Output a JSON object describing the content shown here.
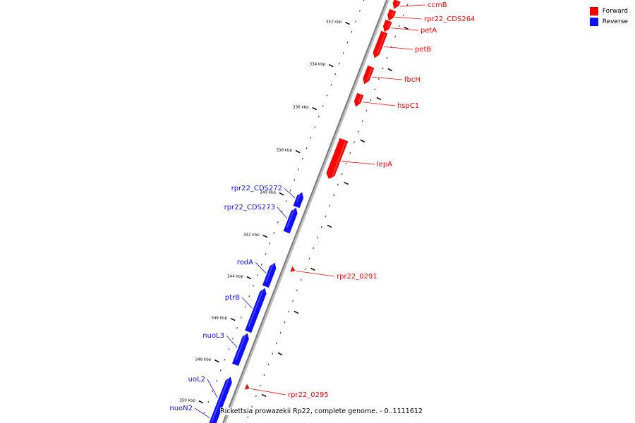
{
  "caption": "Rickettsia prowazekii Rp22, complete genome. - 0..1111612",
  "legend": [
    {
      "label": "Forward",
      "color": "#ff0000"
    },
    {
      "label": "Reverse",
      "color": "#1010ff"
    }
  ],
  "colors": {
    "forward": "#ff0000",
    "reverse": "#1010ff",
    "backbone": "#7a7a7a"
  },
  "ticks": [
    "332 kbp",
    "334 kbp",
    "336 kbp",
    "338 kbp",
    "340 kbp",
    "342 kbp",
    "344 kbp",
    "346 kbp",
    "348 kbp",
    "350 kbp"
  ],
  "genes": [
    {
      "name": "ccmB",
      "strand": "forward"
    },
    {
      "name": "rpr22_CDS264",
      "strand": "forward"
    },
    {
      "name": "petA",
      "strand": "forward"
    },
    {
      "name": "petB",
      "strand": "forward"
    },
    {
      "name": "fbcH",
      "strand": "forward"
    },
    {
      "name": "hspC1",
      "strand": "forward"
    },
    {
      "name": "lepA",
      "strand": "forward"
    },
    {
      "name": "rpr22_0291",
      "strand": "forward"
    },
    {
      "name": "rpr22_0295",
      "strand": "forward"
    },
    {
      "name": "rpr22_CDS272",
      "strand": "reverse"
    },
    {
      "name": "rpr22_CDS273",
      "strand": "reverse"
    },
    {
      "name": "rodA",
      "strand": "reverse"
    },
    {
      "name": "ptrB",
      "strand": "reverse"
    },
    {
      "name": "nuoL3",
      "strand": "reverse"
    },
    {
      "name": "uoL2",
      "strand": "reverse"
    },
    {
      "name": "nuoN2",
      "strand": "reverse"
    }
  ]
}
